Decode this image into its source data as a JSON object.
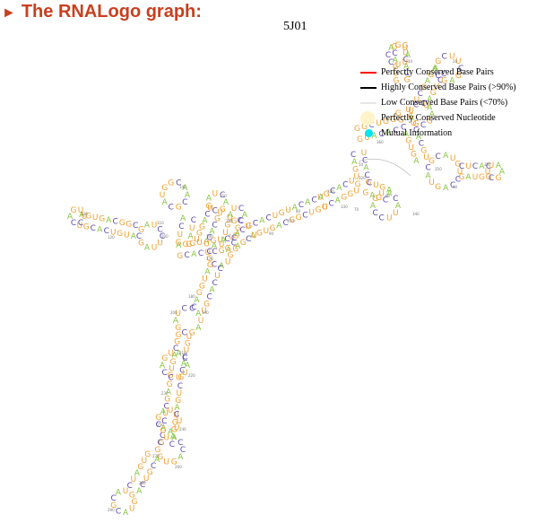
{
  "header": {
    "arrow": "►",
    "title": "The RNALogo graph:"
  },
  "diagram": {
    "structure_name": "5J01",
    "colors": {
      "A": "#88c540",
      "U": "#f0a030",
      "G": "#f0a030",
      "C": "#5c4aa8",
      "ticks": "#777777"
    },
    "position_labels": [
      "10",
      "20",
      "30",
      "40",
      "50",
      "60",
      "70",
      "80",
      "90",
      "100",
      "110",
      "120",
      "130",
      "140",
      "150",
      "160",
      "170",
      "180",
      "190",
      "200",
      "210",
      "220",
      "230",
      "240",
      "250",
      "260",
      "270",
      "280",
      "290",
      "300",
      "310",
      "320",
      "330",
      "340",
      "350",
      "360",
      "370"
    ]
  },
  "legend": {
    "items": [
      {
        "label": "Perfectly Conserved Base Pairs",
        "color": "#ff0000",
        "mark": "line"
      },
      {
        "label": "Highly Conserved Base Pairs (>90%)",
        "color": "#000000",
        "mark": "line"
      },
      {
        "label": "Low Conserved Base Pairs (<70%)",
        "color": "#e6e6e6",
        "mark": "line"
      },
      {
        "label": "Perfectly Conserved Nucleotide",
        "color": "#fff3c9",
        "mark": "circle"
      },
      {
        "label": "Mutual Information",
        "color": "#00e5ee",
        "mark": "dot"
      }
    ]
  }
}
